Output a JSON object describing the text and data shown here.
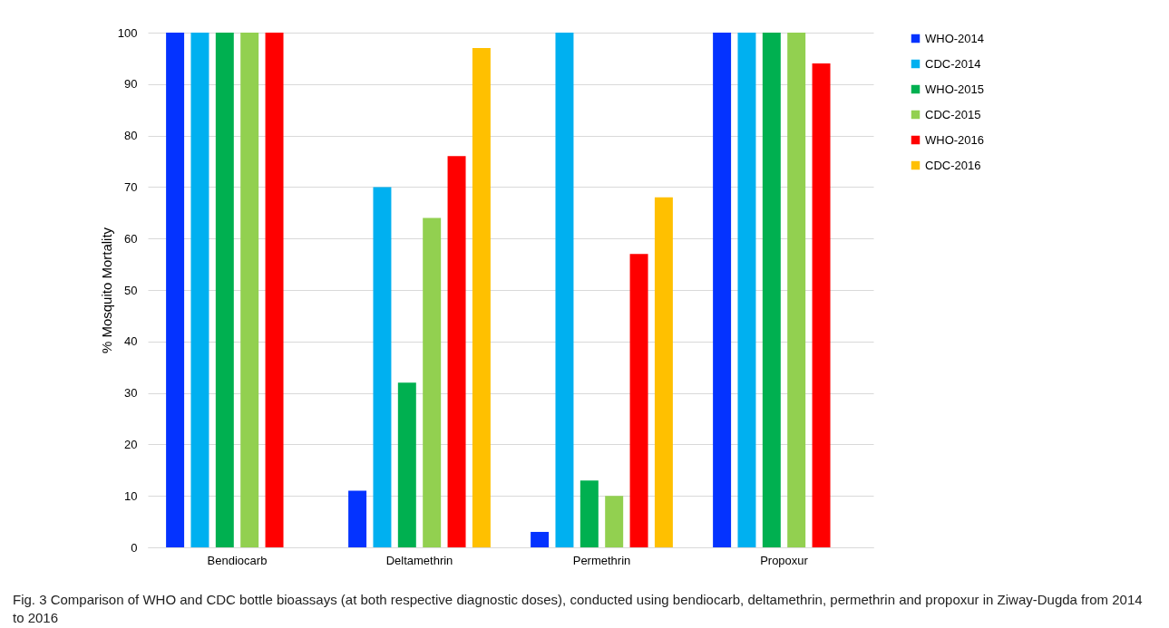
{
  "chart_data": {
    "type": "bar",
    "ylabel": "% Mosquito Mortality",
    "categories": [
      "Bendiocarb",
      "Deltamethrin",
      "Permethrin",
      "Propoxur"
    ],
    "series": [
      {
        "name": "WHO-2014",
        "color": "#0433ff",
        "values": [
          100,
          11,
          3,
          100
        ]
      },
      {
        "name": "CDC-2014",
        "color": "#00b0f0",
        "values": [
          100,
          70,
          100,
          100
        ]
      },
      {
        "name": "WHO-2015",
        "color": "#00b050",
        "values": [
          100,
          32,
          13,
          100
        ]
      },
      {
        "name": "CDC-2015",
        "color": "#92d050",
        "values": [
          100,
          64,
          10,
          100
        ]
      },
      {
        "name": "WHO-2016",
        "color": "#ff0000",
        "values": [
          100,
          76,
          57,
          94
        ]
      },
      {
        "name": "CDC-2016",
        "color": "#ffc000",
        "values": [
          null,
          97,
          68,
          null
        ]
      }
    ],
    "ylim": [
      0,
      100
    ],
    "yticks": [
      0,
      10,
      20,
      30,
      40,
      50,
      60,
      70,
      80,
      90,
      100
    ],
    "grid": "y",
    "legend": "right",
    "annotations": [
      "Fig. 3 Comparison of WHO and CDC bottle bioassays (at both respective diagnostic doses), conducted using bendiocarb, deltamethrin, permethrin and propoxur in Ziway-Dugda from 2014 to 2016"
    ]
  }
}
